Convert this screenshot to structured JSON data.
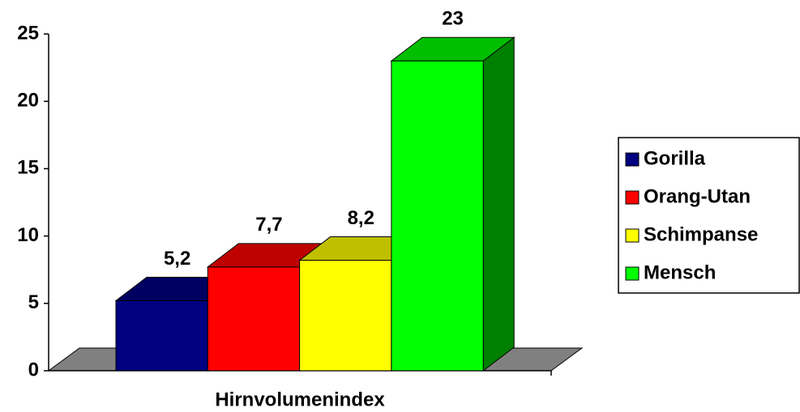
{
  "chart_data": {
    "type": "bar3d",
    "categories": [
      "Hirnvolumenindex"
    ],
    "series": [
      {
        "name": "Gorilla",
        "color": "#000080",
        "values": [
          5.2
        ],
        "value_labels": [
          "5,2"
        ]
      },
      {
        "name": "Orang-Utan",
        "color": "#ff0000",
        "values": [
          7.7
        ],
        "value_labels": [
          "7,7"
        ]
      },
      {
        "name": "Schimpanse",
        "color": "#ffff00",
        "values": [
          8.2
        ],
        "value_labels": [
          "8,2"
        ]
      },
      {
        "name": "Mensch",
        "color": "#00ff00",
        "values": [
          23
        ],
        "value_labels": [
          "23"
        ]
      }
    ],
    "ylim": [
      0,
      25
    ],
    "yticks": [
      0,
      5,
      10,
      15,
      20,
      25
    ],
    "legend": "right"
  }
}
